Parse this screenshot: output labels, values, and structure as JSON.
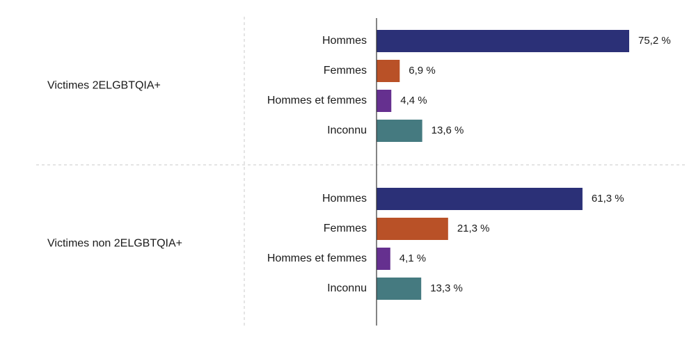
{
  "chart_data": {
    "type": "bar",
    "orientation": "horizontal",
    "title": "",
    "xlabel": "",
    "ylabel": "",
    "xlim": [
      0,
      100
    ],
    "grid": false,
    "legend": "none",
    "groups": [
      {
        "label": "Victimes 2ELGBTQIA+",
        "categories": [
          "Hommes",
          "Femmes",
          "Hommes et femmes",
          "Inconnu"
        ],
        "values": [
          75.2,
          6.9,
          4.4,
          13.6
        ],
        "value_labels": [
          "75,2 %",
          "6,9 %",
          "4,4 %",
          "13,6 %"
        ]
      },
      {
        "label": "Victimes non 2ELGBTQIA+",
        "categories": [
          "Hommes",
          "Femmes",
          "Hommes et femmes",
          "Inconnu"
        ],
        "values": [
          61.3,
          21.3,
          4.1,
          13.3
        ],
        "value_labels": [
          "61,3 %",
          "21,3 %",
          "4,1 %",
          "13,3 %"
        ]
      }
    ],
    "colors": {
      "Hommes": "#2b3077",
      "Femmes": "#b95127",
      "Hommes et femmes": "#65308f",
      "Inconnu": "#457a80"
    }
  }
}
